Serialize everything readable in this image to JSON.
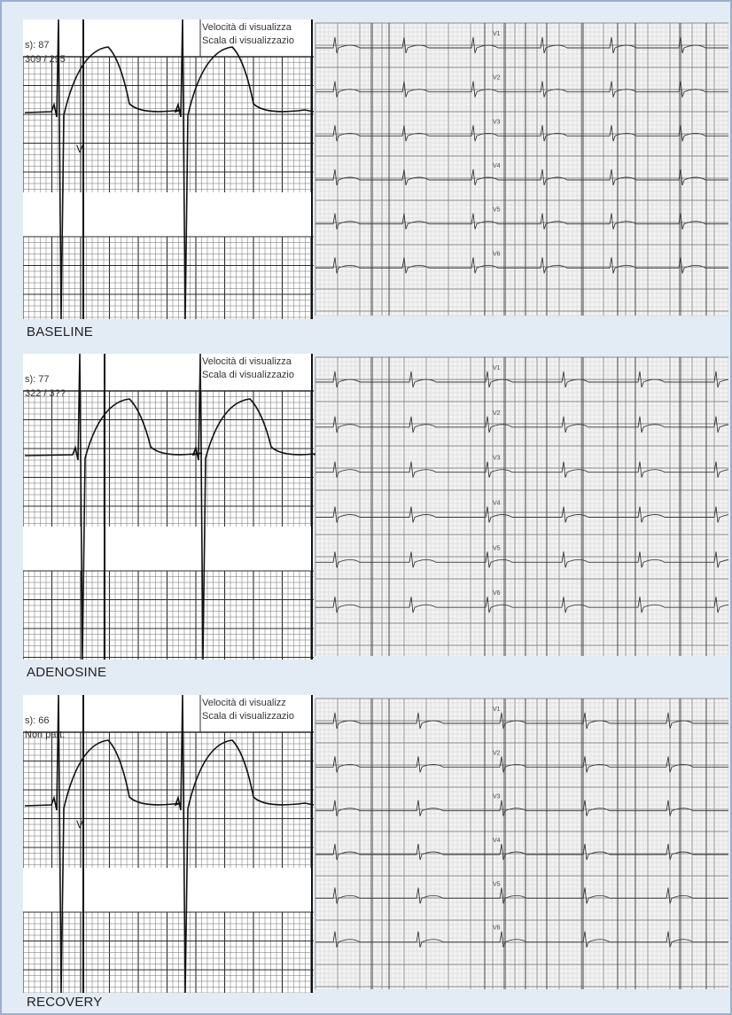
{
  "panels": [
    {
      "id": "baseline",
      "caption": "BASELINE",
      "hr_text": "s): 87",
      "sub_text": "309 / 295",
      "speed_text": "Velocità di visualizza",
      "scale_text": "Scala di visualizzazio",
      "marker": "V"
    },
    {
      "id": "adenosine",
      "caption": "ADENOSINE",
      "hr_text": "s): 77",
      "sub_text": "322 / 3??",
      "speed_text": "Velocità di visualizza",
      "scale_text": "Scala di visualizzazio",
      "marker": ""
    },
    {
      "id": "recovery",
      "caption": "RECOVERY",
      "hr_text": "s): 66",
      "sub_text": "Non part.",
      "speed_text": "Velocità di visualizz",
      "scale_text": "Scala di visualizzazio",
      "marker": "V"
    }
  ],
  "lead_labels": [
    "V1",
    "V2",
    "V3",
    "V4",
    "V5",
    "V6"
  ],
  "colors": {
    "frame_bg": "#e3ebf5",
    "frame_border": "#9ab0cc",
    "grid_major": "#2b2b2b",
    "grid_minor": "#6d6d6d",
    "trace": "#111111",
    "strip_bg": "#f3f3f3"
  }
}
